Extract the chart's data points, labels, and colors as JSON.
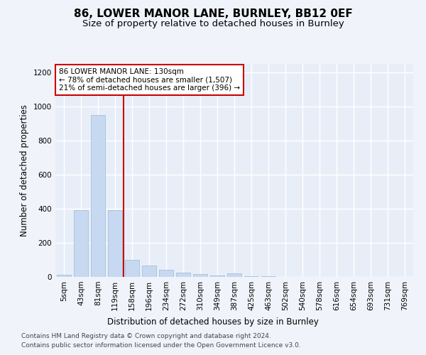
{
  "title": "86, LOWER MANOR LANE, BURNLEY, BB12 0EF",
  "subtitle": "Size of property relative to detached houses in Burnley",
  "xlabel": "Distribution of detached houses by size in Burnley",
  "ylabel": "Number of detached properties",
  "categories": [
    "5sqm",
    "43sqm",
    "81sqm",
    "119sqm",
    "158sqm",
    "196sqm",
    "234sqm",
    "272sqm",
    "310sqm",
    "349sqm",
    "387sqm",
    "425sqm",
    "463sqm",
    "502sqm",
    "540sqm",
    "578sqm",
    "616sqm",
    "654sqm",
    "693sqm",
    "731sqm",
    "769sqm"
  ],
  "values": [
    13,
    390,
    950,
    390,
    100,
    65,
    42,
    25,
    15,
    10,
    20,
    3,
    3,
    0,
    0,
    0,
    0,
    0,
    0,
    0,
    0
  ],
  "bar_color": "#c6d9f0",
  "bar_edge_color": "#9ab8d8",
  "vline_x": 3.5,
  "vline_color": "#cc0000",
  "annotation_line1": "86 LOWER MANOR LANE: 130sqm",
  "annotation_line2": "← 78% of detached houses are smaller (1,507)",
  "annotation_line3": "21% of semi-detached houses are larger (396) →",
  "annotation_box_color": "#ffffff",
  "annotation_box_edge": "#cc0000",
  "ylim": [
    0,
    1250
  ],
  "yticks": [
    0,
    200,
    400,
    600,
    800,
    1000,
    1200
  ],
  "footer1": "Contains HM Land Registry data © Crown copyright and database right 2024.",
  "footer2": "Contains public sector information licensed under the Open Government Licence v3.0.",
  "bg_color": "#f0f4fa",
  "plot_bg_color": "#e8eef8",
  "grid_color": "#ffffff",
  "title_fontsize": 11,
  "subtitle_fontsize": 9.5,
  "axis_label_fontsize": 8.5,
  "tick_fontsize": 7.5,
  "annotation_fontsize": 7.5,
  "footer_fontsize": 6.5
}
